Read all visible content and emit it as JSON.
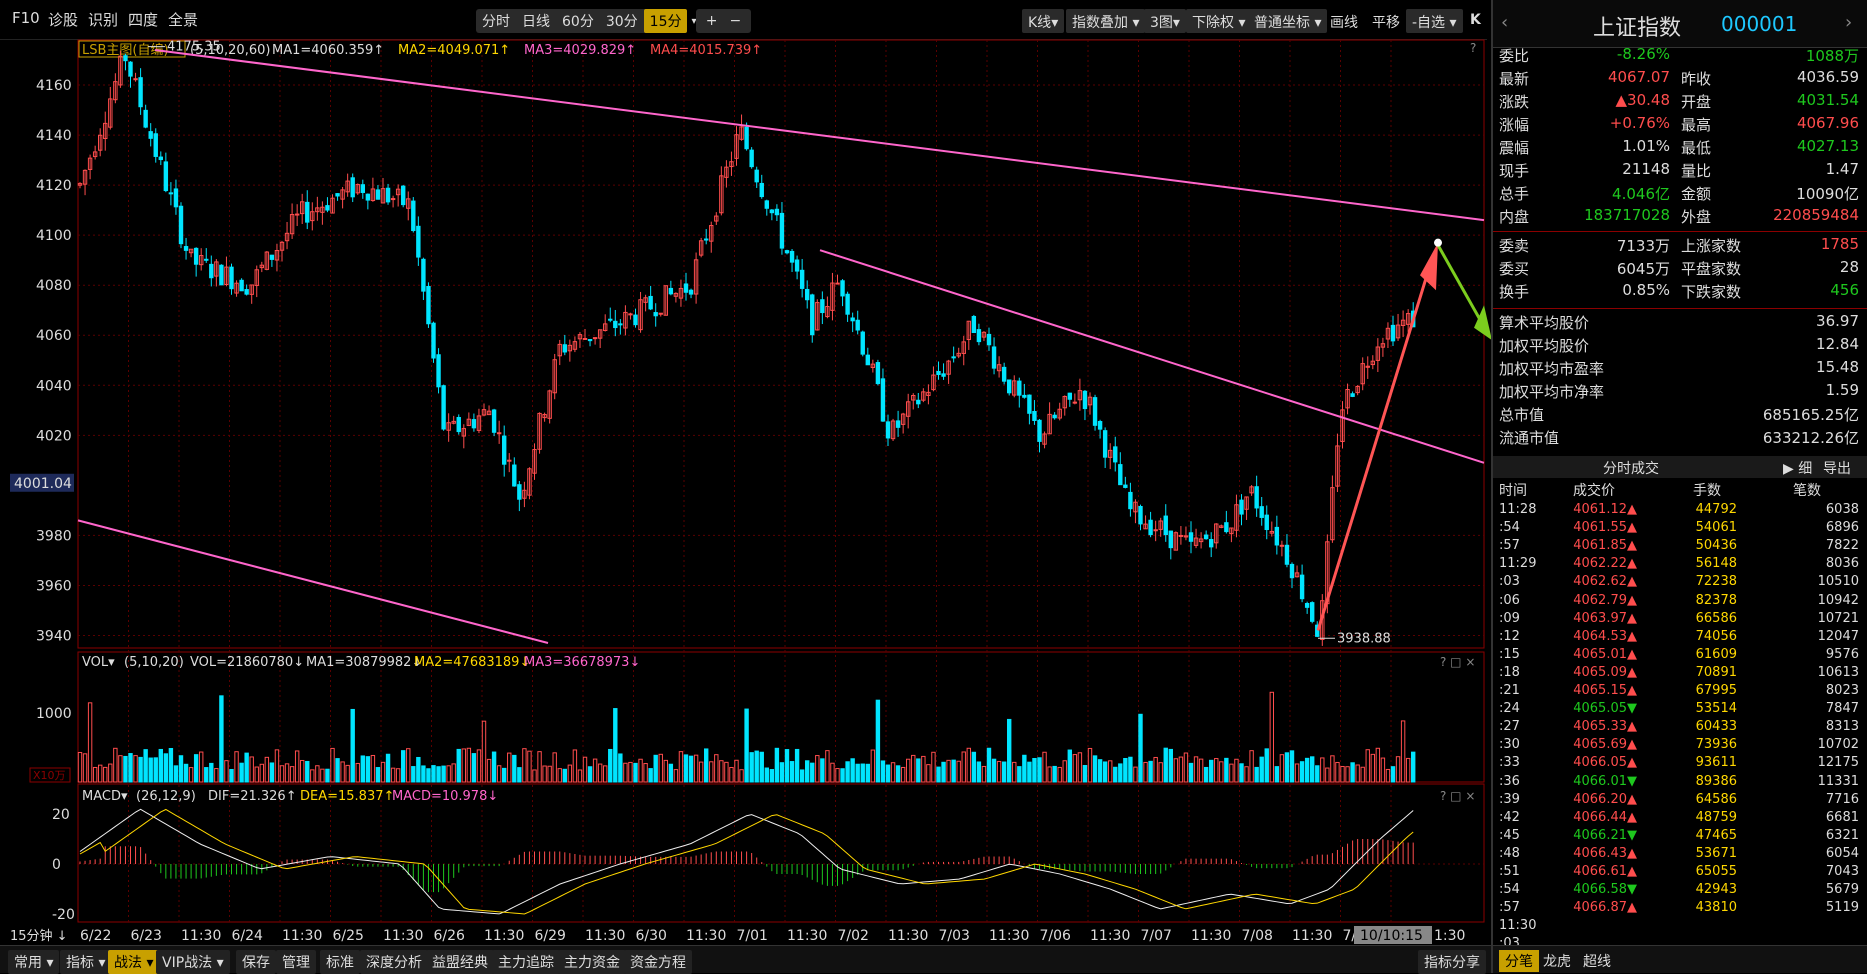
{
  "toolbar": {
    "f10": "F10",
    "diagnose": "诊股",
    "identify": "识别",
    "four_degree": "四度",
    "full_view": "全景",
    "periods": [
      "分时",
      "日线",
      "60分",
      "30分",
      "15分"
    ],
    "selected_period": "15分",
    "plus": "+",
    "minus": "−",
    "kline": "K线",
    "indicator_overlay": "指数叠加",
    "three_charts": "3图",
    "rights": "下除权",
    "coord": "普通坐标",
    "draw": "画线",
    "pan": "平移",
    "custom": "-自选",
    "close": "K"
  },
  "main_chart": {
    "indicator_name": "LSB主图(自编)",
    "params": "(5,10,20,60)",
    "ma1": "MA1=4060.359",
    "ma2": "MA2=4049.071",
    "ma3": "MA3=4029.829",
    "ma4": "MA4=4015.739",
    "y_ticks": [
      "4160",
      "4140",
      "4120",
      "4100",
      "4080",
      "4060",
      "4040",
      "4020",
      "4001.04",
      "3980",
      "3960",
      "3940"
    ],
    "high_label": "4175.35",
    "low_label": "3938.88",
    "question": "?"
  },
  "vol_panel": {
    "name": "VOL",
    "params": "(5,10,20)",
    "vol": "VOL=21860780",
    "ma1": "MA1=30879982",
    "ma2": "MA2=47683189",
    "ma3": "MA3=36678973",
    "y_tick": "1000",
    "unit": "X10万",
    "controls": "? □ ×"
  },
  "macd_panel": {
    "name": "MACD",
    "params": "(26,12,9)",
    "dif": "DIF=21.326",
    "dea": "DEA=15.837",
    "macd": "MACD=10.978",
    "y_ticks": [
      "20",
      "0",
      "-20"
    ],
    "controls": "? □ ×"
  },
  "time_axis": {
    "period_label": "15分钟",
    "labels": [
      "6/22",
      "6/23",
      "11:30",
      "6/24",
      "11:30",
      "6/25",
      "11:30",
      "6/26",
      "11:30",
      "6/29",
      "11:30",
      "6/30",
      "11:30",
      "7/01",
      "11:30",
      "7/02",
      "11:30",
      "7/03",
      "11:30",
      "7/06",
      "11:30",
      "7/07",
      "11:30",
      "7/08",
      "11:30",
      "7/09",
      "11:3"
    ],
    "cursor_time": "10/10:15",
    "after_cursor": "1:30"
  },
  "bottombar": {
    "items": [
      "常用",
      "指标",
      "战法",
      "VIP战法",
      "保存",
      "管理",
      "标准",
      "深度分析",
      "益盟经典",
      "主力追踪",
      "主力资金",
      "资金方程"
    ],
    "right": "指标分享"
  },
  "quote": {
    "name": "上证指数",
    "code": "000001",
    "rows_left": [
      {
        "label": "委比",
        "value": "-8.26%",
        "color": "green"
      },
      {
        "label": "最新",
        "value": "4067.07",
        "color": "red"
      },
      {
        "label": "涨跌",
        "value": "▲30.48",
        "color": "red"
      },
      {
        "label": "涨幅",
        "value": "+0.76%",
        "color": "red"
      },
      {
        "label": "震幅",
        "value": "1.01%",
        "color": "white"
      },
      {
        "label": "现手",
        "value": "21148",
        "color": "white"
      },
      {
        "label": "总手",
        "value": "4.046亿",
        "color": "green"
      },
      {
        "label": "内盘",
        "value": "183717028",
        "color": "green"
      }
    ],
    "rows_right": [
      {
        "label": "",
        "value": "1088万",
        "color": "green"
      },
      {
        "label": "昨收",
        "value": "4036.59",
        "color": "white"
      },
      {
        "label": "开盘",
        "value": "4031.54",
        "color": "green"
      },
      {
        "label": "最高",
        "value": "4067.96",
        "color": "red"
      },
      {
        "label": "最低",
        "value": "4027.13",
        "color": "green"
      },
      {
        "label": "量比",
        "value": "1.47",
        "color": "white"
      },
      {
        "label": "金额",
        "value": "10090亿",
        "color": "white"
      },
      {
        "label": "外盘",
        "value": "220859484",
        "color": "red"
      }
    ],
    "rows2_left": [
      {
        "label": "委卖",
        "value": "7133万",
        "color": "white"
      },
      {
        "label": "委买",
        "value": "6045万",
        "color": "white"
      },
      {
        "label": "换手",
        "value": "0.85%",
        "color": "white"
      }
    ],
    "rows2_right": [
      {
        "label": "上涨家数",
        "value": "1785",
        "color": "red"
      },
      {
        "label": "平盘家数",
        "value": "28",
        "color": "white"
      },
      {
        "label": "下跌家数",
        "value": "456",
        "color": "green"
      }
    ],
    "rows3": [
      {
        "label": "算术平均股价",
        "value": "36.97"
      },
      {
        "label": "加权平均股价",
        "value": "12.84"
      },
      {
        "label": "加权平均市盈率",
        "value": "15.48"
      },
      {
        "label": "加权平均市净率",
        "value": "1.59"
      },
      {
        "label": "总市值",
        "value": "685165.25亿"
      },
      {
        "label": "流通市值",
        "value": "633212.26亿"
      }
    ],
    "tick_title": "分时成交",
    "tick_detail": "细",
    "tick_export": "导出",
    "tick_headers": [
      "时间",
      "成交价",
      "手数",
      "笔数"
    ],
    "ticks": [
      [
        "11:28",
        "4061.12▲",
        "44792",
        "6038"
      ],
      [
        ":54",
        "4061.55▲",
        "54061",
        "6896"
      ],
      [
        ":57",
        "4061.85▲",
        "50436",
        "7822"
      ],
      [
        "11:29",
        "4062.22▲",
        "56148",
        "8036"
      ],
      [
        ":03",
        "4062.62▲",
        "72238",
        "10510"
      ],
      [
        ":06",
        "4062.79▲",
        "82378",
        "10942"
      ],
      [
        ":09",
        "4063.97▲",
        "66586",
        "10721"
      ],
      [
        ":12",
        "4064.53▲",
        "74056",
        "12047"
      ],
      [
        ":15",
        "4065.01▲",
        "61609",
        "9576"
      ],
      [
        ":18",
        "4065.09▲",
        "70891",
        "10613"
      ],
      [
        ":21",
        "4065.15▲",
        "67995",
        "8023"
      ],
      [
        ":24",
        "4065.05▼",
        "53514",
        "7847"
      ],
      [
        ":27",
        "4065.33▲",
        "60433",
        "8313"
      ],
      [
        ":30",
        "4065.69▲",
        "73936",
        "10702"
      ],
      [
        ":33",
        "4066.05▲",
        "93611",
        "12175"
      ],
      [
        ":36",
        "4066.01▼",
        "89386",
        "11331"
      ],
      [
        ":39",
        "4066.20▲",
        "64586",
        "7716"
      ],
      [
        ":42",
        "4066.44▲",
        "48759",
        "6681"
      ],
      [
        ":45",
        "4066.21▼",
        "47465",
        "6321"
      ],
      [
        ":48",
        "4066.43▲",
        "53671",
        "6054"
      ],
      [
        ":51",
        "4066.61▲",
        "65055",
        "7043"
      ],
      [
        ":54",
        "4066.58▼",
        "42943",
        "5679"
      ],
      [
        ":57",
        "4066.87▲",
        "43810",
        "5119"
      ],
      [
        "11:30",
        "",
        "",
        ""
      ],
      [
        ":03",
        "",
        "",
        ""
      ]
    ],
    "bottom_tabs": [
      "分笔",
      "龙虎",
      "超线"
    ]
  },
  "colors": {
    "up": "#ff4d4d",
    "down": "#00e5ff",
    "ma_line": "#ff66cc",
    "grid": "#5a0000",
    "bg": "#000000"
  }
}
